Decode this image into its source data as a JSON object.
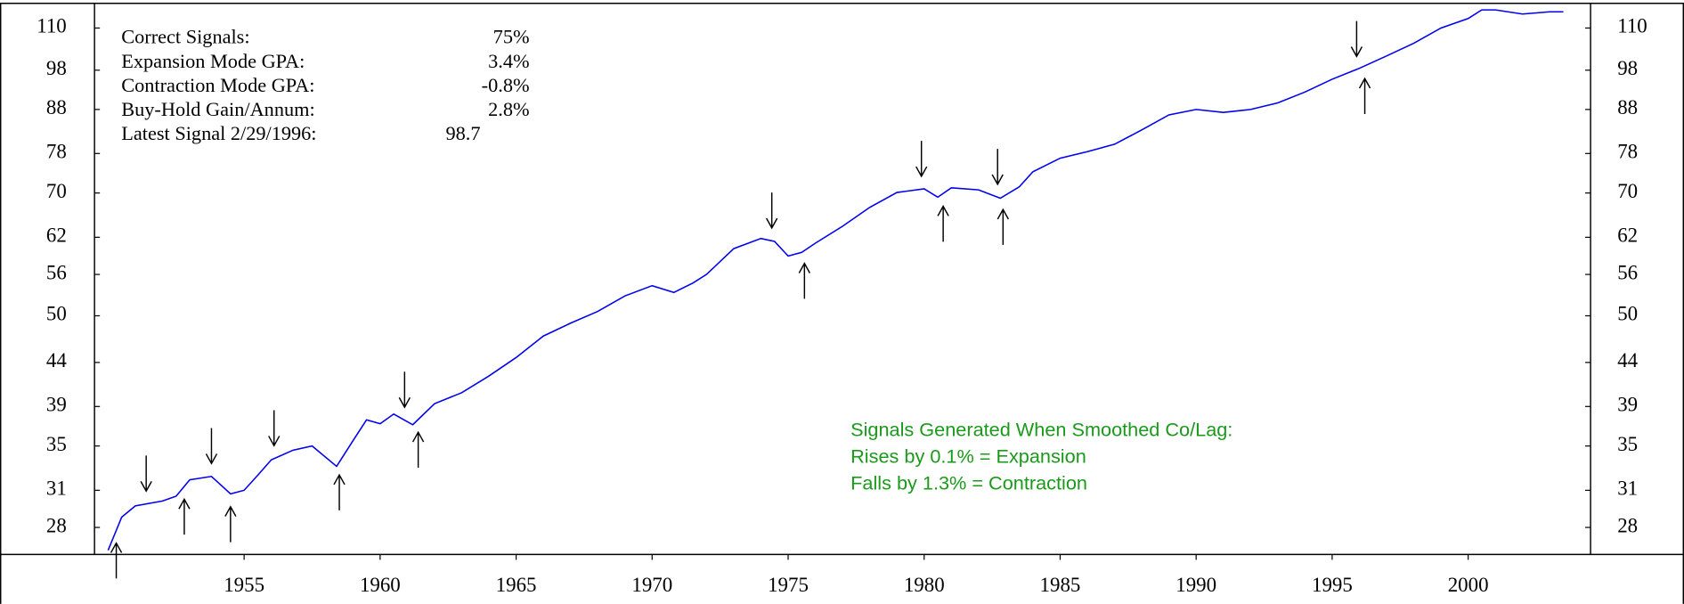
{
  "chart_data": {
    "type": "line",
    "log_scale": true,
    "xlim": [
      1949.5,
      2004.5
    ],
    "xticks": [
      1955,
      1960,
      1965,
      1970,
      1975,
      1980,
      1985,
      1990,
      1995,
      2000
    ],
    "ylim": [
      26,
      117.7
    ],
    "yticks": [
      28,
      31,
      35,
      39,
      44,
      50,
      56,
      62,
      70,
      78,
      88,
      98,
      110
    ],
    "series": [
      {
        "color": "#0000ee",
        "x": [
          1950.0,
          1950.5,
          1951,
          1952,
          1952.5,
          1953,
          1953.8,
          1954.5,
          1955,
          1955.5,
          1956,
          1956.8,
          1957.5,
          1958.4,
          1959,
          1959.5,
          1960,
          1960.5,
          1961.2,
          1962,
          1963,
          1964,
          1965,
          1966,
          1967,
          1968,
          1969,
          1970,
          1970.8,
          1971.5,
          1972,
          1973,
          1974,
          1974.5,
          1975,
          1975.5,
          1976,
          1977,
          1978,
          1979,
          1980,
          1980.5,
          1981,
          1982,
          1982.8,
          1983.5,
          1984,
          1985,
          1986,
          1987,
          1988,
          1989,
          1990,
          1991,
          1992,
          1993,
          1994,
          1995,
          1996,
          1997,
          1998,
          1999,
          2000,
          2000.5,
          2001,
          2002,
          2003,
          2003.5
        ],
        "values": [
          26.3,
          28.8,
          29.7,
          30.1,
          30.5,
          31.9,
          32.2,
          30.7,
          31.0,
          32.3,
          33.7,
          34.6,
          35.0,
          33.1,
          35.5,
          37.6,
          37.2,
          38.2,
          37.1,
          39.3,
          40.5,
          42.4,
          44.6,
          47.3,
          49.0,
          50.6,
          52.8,
          54.3,
          53.3,
          54.7,
          56.0,
          60.1,
          61.8,
          61.3,
          58.9,
          59.5,
          61.0,
          63.9,
          67.3,
          70.1,
          70.8,
          69.2,
          71.0,
          70.6,
          69.0,
          71.2,
          74.2,
          77.0,
          78.4,
          80.0,
          83.2,
          86.7,
          88.0,
          87.3,
          88.0,
          89.6,
          92.3,
          95.6,
          98.5,
          101.9,
          105.5,
          110.0,
          112.9,
          115.6,
          115.6,
          114.3,
          115.0,
          115.0
        ]
      }
    ],
    "contraction_signals": [
      1951.4,
      1953.8,
      1956.1,
      1960.9,
      1974.4,
      1979.9,
      1982.7,
      1995.9
    ],
    "expansion_signals": [
      1950.3,
      1952.8,
      1954.5,
      1958.5,
      1961.4,
      1975.6,
      1980.7,
      1982.9,
      1996.2
    ],
    "stats": [
      {
        "label": "Correct Signals:",
        "value": "75%"
      },
      {
        "label": "Expansion Mode GPA:",
        "value": "3.4%"
      },
      {
        "label": "Contraction Mode GPA:",
        "value": "-0.8%"
      },
      {
        "label": "Buy-Hold Gain/Annum:",
        "value": "2.8%"
      },
      {
        "label": "Latest Signal 2/29/1996:",
        "value": "98.7"
      }
    ],
    "notes": [
      "Signals Generated When Smoothed Co/Lag:",
      "Rises by 0.1% = Expansion",
      "Falls by 1.3% = Contraction"
    ]
  }
}
